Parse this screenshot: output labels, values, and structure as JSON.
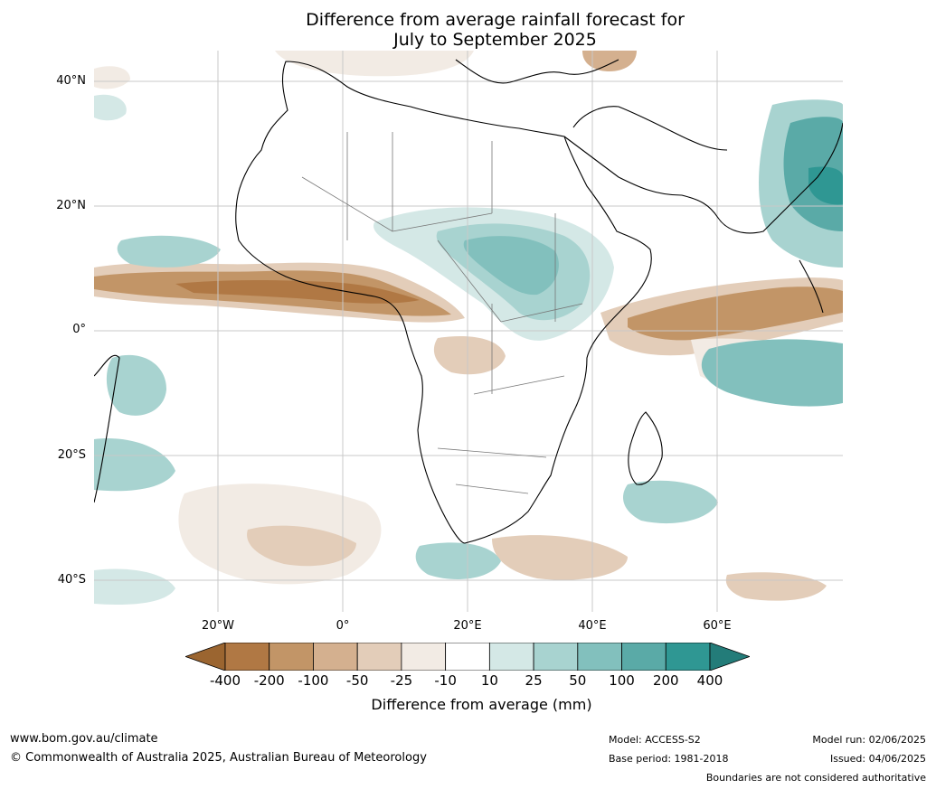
{
  "title_line1": "Difference from average rainfall forecast for",
  "title_line2": "July to September 2025",
  "map": {
    "lat_labels": [
      "40°N",
      "20°N",
      "0°",
      "20°S",
      "40°S"
    ],
    "lon_labels": [
      "20°W",
      "0°",
      "20°E",
      "40°E",
      "60°E"
    ]
  },
  "colorbar": {
    "ticks": [
      "-400",
      "-200",
      "-100",
      "-50",
      "-25",
      "-10",
      "10",
      "25",
      "50",
      "100",
      "200",
      "400"
    ],
    "colors": [
      "#9b6530",
      "#b07844",
      "#c29567",
      "#d4b08f",
      "#e3cdb9",
      "#f2ebe4",
      "#ffffff",
      "#d4e8e6",
      "#a8d3d0",
      "#82c0bd",
      "#5aaaa7",
      "#2f9793",
      "#237c79"
    ],
    "label": "Difference from average (mm)"
  },
  "footer": {
    "url": "www.bom.gov.au/climate",
    "copyright": "© Commonwealth of Australia 2025, Australian Bureau of Meteorology",
    "model": "Model: ACCESS-S2",
    "base_period": "Base period: 1981-2018",
    "model_run": "Model run: 02/06/2025",
    "issued": "Issued: 04/06/2025",
    "disclaimer": "Boundaries are not considered authoritative"
  }
}
